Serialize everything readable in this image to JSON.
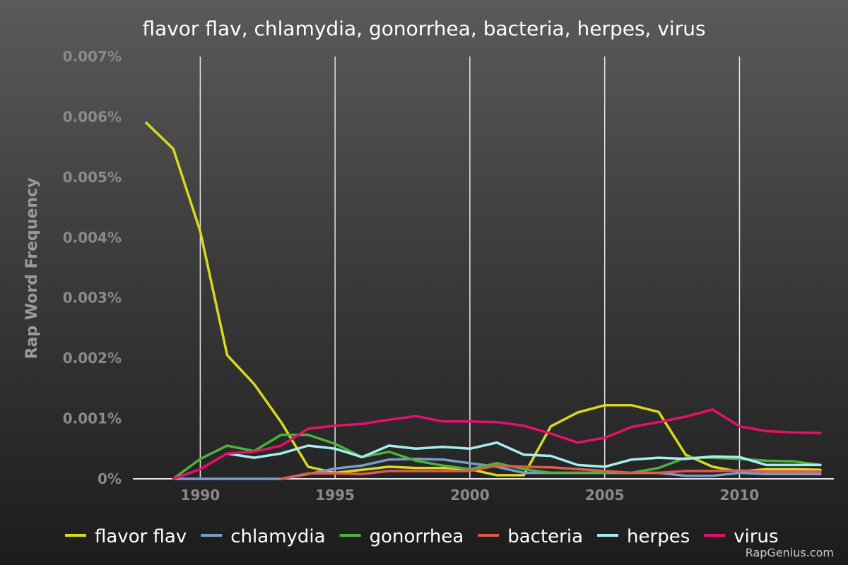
{
  "chart_data": {
    "type": "line",
    "title": "flavor flav, chlamydia, gonorrhea, bacteria, herpes, virus",
    "ylabel": "Rap Word Frequency",
    "xlabel": "",
    "xlim": [
      1987.5,
      2013.5
    ],
    "ylim": [
      0,
      0.007
    ],
    "x_ticks": [
      1990,
      1995,
      2000,
      2005,
      2010
    ],
    "y_ticks": [
      "0%",
      "0.001%",
      "0.002%",
      "0.003%",
      "0.004%",
      "0.005%",
      "0.006%",
      "0.007%"
    ],
    "y_tick_values": [
      0,
      0.001,
      0.002,
      0.003,
      0.004,
      0.005,
      0.006,
      0.007
    ],
    "grid": "vertical",
    "legend_position": "bottom",
    "series": [
      {
        "name": "flavor flav",
        "color": "#d9d91f",
        "points": [
          [
            1988,
            0.0059
          ],
          [
            1989,
            0.00547
          ],
          [
            1990,
            0.0041
          ],
          [
            1991,
            0.00205
          ],
          [
            1992,
            0.00157
          ],
          [
            1993,
            0.00094
          ],
          [
            1994,
            0.0002
          ],
          [
            1995,
            0.0001
          ],
          [
            1996,
            0.00015
          ],
          [
            1997,
            0.0002
          ],
          [
            1998,
            0.00018
          ],
          [
            1999,
            0.00018
          ],
          [
            2000,
            0.00016
          ],
          [
            2001,
            6e-05
          ],
          [
            2002,
            6e-05
          ],
          [
            2003,
            0.00087
          ],
          [
            2004,
            0.0011
          ],
          [
            2005,
            0.00122
          ],
          [
            2006,
            0.00122
          ],
          [
            2007,
            0.00111
          ],
          [
            2008,
            0.0004
          ],
          [
            2009,
            0.0002
          ],
          [
            2010,
            0.00012
          ],
          [
            2011,
            0.00016
          ],
          [
            2012,
            0.00016
          ],
          [
            2013,
            0.00015
          ]
        ]
      },
      {
        "name": "chlamydia",
        "color": "#7b9cc9",
        "points": [
          [
            1989,
            0
          ],
          [
            1990,
            0
          ],
          [
            1991,
            0
          ],
          [
            1992,
            0
          ],
          [
            1993,
            0
          ],
          [
            1994,
            8e-05
          ],
          [
            1995,
            0.00017
          ],
          [
            1996,
            0.00022
          ],
          [
            1997,
            0.00032
          ],
          [
            1998,
            0.00033
          ],
          [
            1999,
            0.00032
          ],
          [
            2000,
            0.00026
          ],
          [
            2001,
            0.0002
          ],
          [
            2002,
            0.0001
          ],
          [
            2003,
            0.0001
          ],
          [
            2004,
            0.0001
          ],
          [
            2005,
            0.0001
          ],
          [
            2006,
            0.0001
          ],
          [
            2007,
            0.0001
          ],
          [
            2008,
            5e-05
          ],
          [
            2009,
            5e-05
          ],
          [
            2010,
            0.0001
          ],
          [
            2011,
            8e-05
          ],
          [
            2012,
            8e-05
          ],
          [
            2013,
            8e-05
          ]
        ]
      },
      {
        "name": "gonorrhea",
        "color": "#4cb33a",
        "points": [
          [
            1989,
            0
          ],
          [
            1990,
            0.00033
          ],
          [
            1991,
            0.00055
          ],
          [
            1992,
            0.00046
          ],
          [
            1993,
            0.00073
          ],
          [
            1994,
            0.00073
          ],
          [
            1995,
            0.00058
          ],
          [
            1996,
            0.00036
          ],
          [
            1997,
            0.00045
          ],
          [
            1998,
            0.0003
          ],
          [
            1999,
            0.00022
          ],
          [
            2000,
            0.00016
          ],
          [
            2001,
            0.00026
          ],
          [
            2002,
            0.00016
          ],
          [
            2003,
            0.0001
          ],
          [
            2004,
            0.0001
          ],
          [
            2005,
            0.0001
          ],
          [
            2006,
            0.0001
          ],
          [
            2007,
            0.00018
          ],
          [
            2008,
            0.00035
          ],
          [
            2009,
            0.00035
          ],
          [
            2010,
            0.00033
          ],
          [
            2011,
            0.0003
          ],
          [
            2012,
            0.00029
          ],
          [
            2013,
            0.00023
          ]
        ]
      },
      {
        "name": "bacteria",
        "color": "#e05a4e",
        "points": [
          [
            1993,
            0
          ],
          [
            1994,
            9e-05
          ],
          [
            1995,
            9e-05
          ],
          [
            1996,
            8e-05
          ],
          [
            1997,
            0.00013
          ],
          [
            1998,
            0.00013
          ],
          [
            1999,
            0.00013
          ],
          [
            2000,
            0.00013
          ],
          [
            2001,
            0.00022
          ],
          [
            2002,
            0.0002
          ],
          [
            2003,
            0.00019
          ],
          [
            2004,
            0.00016
          ],
          [
            2005,
            0.00013
          ],
          [
            2006,
            0.0001
          ],
          [
            2007,
            0.0001
          ],
          [
            2008,
            0.00013
          ],
          [
            2009,
            0.00013
          ],
          [
            2010,
            0.00014
          ],
          [
            2011,
            0.00012
          ],
          [
            2012,
            0.00012
          ],
          [
            2013,
            0.00012
          ]
        ]
      },
      {
        "name": "herpes",
        "color": "#a8eef0",
        "points": [
          [
            1991,
            0.00042
          ],
          [
            1992,
            0.00035
          ],
          [
            1993,
            0.00042
          ],
          [
            1994,
            0.00055
          ],
          [
            1995,
            0.0005
          ],
          [
            1996,
            0.00036
          ],
          [
            1997,
            0.00055
          ],
          [
            1998,
            0.0005
          ],
          [
            1999,
            0.00053
          ],
          [
            2000,
            0.0005
          ],
          [
            2001,
            0.0006
          ],
          [
            2002,
            0.0004
          ],
          [
            2003,
            0.00038
          ],
          [
            2004,
            0.00023
          ],
          [
            2005,
            0.0002
          ],
          [
            2006,
            0.00032
          ],
          [
            2007,
            0.00035
          ],
          [
            2008,
            0.00033
          ],
          [
            2009,
            0.00037
          ],
          [
            2010,
            0.00036
          ],
          [
            2011,
            0.00023
          ],
          [
            2012,
            0.00023
          ],
          [
            2013,
            0.00023
          ]
        ]
      },
      {
        "name": "virus",
        "color": "#e8106a",
        "points": [
          [
            1989,
            0
          ],
          [
            1990,
            0.00016
          ],
          [
            1991,
            0.00042
          ],
          [
            1992,
            0.00045
          ],
          [
            1993,
            0.00055
          ],
          [
            1994,
            0.00083
          ],
          [
            1995,
            0.00088
          ],
          [
            1996,
            0.00091
          ],
          [
            1997,
            0.00098
          ],
          [
            1998,
            0.00104
          ],
          [
            1999,
            0.00095
          ],
          [
            2000,
            0.00095
          ],
          [
            2001,
            0.00094
          ],
          [
            2002,
            0.00088
          ],
          [
            2003,
            0.00075
          ],
          [
            2004,
            0.0006
          ],
          [
            2005,
            0.00068
          ],
          [
            2006,
            0.00086
          ],
          [
            2007,
            0.00094
          ],
          [
            2008,
            0.00103
          ],
          [
            2009,
            0.00115
          ],
          [
            2010,
            0.00087
          ],
          [
            2011,
            0.00079
          ],
          [
            2012,
            0.00077
          ],
          [
            2013,
            0.00076
          ]
        ]
      }
    ]
  },
  "credit": "RapGenius.com"
}
